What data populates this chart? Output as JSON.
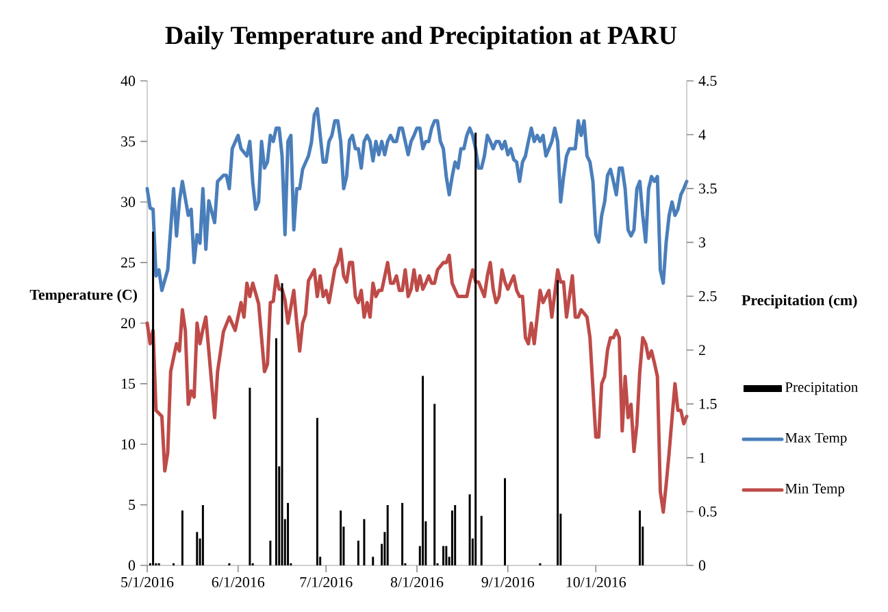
{
  "chart_data": {
    "type": "line",
    "title": "Daily Temperature and Precipitation at PARU",
    "ylabel": "Temperature (C)",
    "y2label": "Precipitation (cm)",
    "xlim": [
      "2016-05-01",
      "2016-11-01"
    ],
    "xticks": [
      {
        "value": "2016-05-01",
        "label": "5/1/2016"
      },
      {
        "value": "2016-06-01",
        "label": "6/1/2016"
      },
      {
        "value": "2016-07-01",
        "label": "7/1/2016"
      },
      {
        "value": "2016-08-01",
        "label": "8/1/2016"
      },
      {
        "value": "2016-09-01",
        "label": "9/1/2016"
      },
      {
        "value": "2016-10-01",
        "label": "10/1/2016"
      }
    ],
    "ylim": [
      0,
      40
    ],
    "yticks": [
      0,
      5,
      10,
      15,
      20,
      25,
      30,
      35,
      40
    ],
    "y2lim": [
      0,
      4.5
    ],
    "y2ticks": [
      0,
      0.5,
      1,
      1.5,
      2,
      2.5,
      3,
      3.5,
      4,
      4.5
    ],
    "legend": "right",
    "series": [
      {
        "name": "Precipitation",
        "type": "bar",
        "axis": "y2",
        "color": "#000000",
        "x": [
          "2016-05-02",
          "2016-05-03",
          "2016-05-04",
          "2016-05-05",
          "2016-05-10",
          "2016-05-13",
          "2016-05-18",
          "2016-05-19",
          "2016-05-20",
          "2016-05-29",
          "2016-06-05",
          "2016-06-06",
          "2016-06-12",
          "2016-06-14",
          "2016-06-15",
          "2016-06-16",
          "2016-06-17",
          "2016-06-18",
          "2016-06-19",
          "2016-06-28",
          "2016-06-29",
          "2016-07-06",
          "2016-07-07",
          "2016-07-12",
          "2016-07-14",
          "2016-07-17",
          "2016-07-20",
          "2016-07-21",
          "2016-07-22",
          "2016-07-27",
          "2016-07-28",
          "2016-08-02",
          "2016-08-03",
          "2016-08-04",
          "2016-08-07",
          "2016-08-08",
          "2016-08-10",
          "2016-08-11",
          "2016-08-12",
          "2016-08-13",
          "2016-08-14",
          "2016-08-19",
          "2016-08-20",
          "2016-08-21",
          "2016-08-23",
          "2016-08-31",
          "2016-09-12",
          "2016-09-18",
          "2016-09-19",
          "2016-10-16",
          "2016-10-17"
        ],
        "values": [
          0.02,
          3.1,
          0.02,
          0.02,
          0.02,
          0.51,
          0.31,
          0.25,
          0.56,
          0.02,
          1.65,
          0.02,
          0.23,
          2.11,
          0.92,
          2.62,
          0.43,
          0.58,
          0.02,
          1.37,
          0.08,
          0.51,
          0.36,
          0.23,
          0.43,
          0.08,
          0.2,
          0.31,
          0.56,
          0.58,
          0.02,
          0.18,
          1.76,
          0.41,
          1.5,
          0.02,
          0.18,
          0.18,
          0.08,
          0.51,
          0.56,
          0.66,
          0.25,
          4.02,
          0.46,
          0.81,
          0.02,
          2.65,
          0.48,
          0.51,
          0.36
        ]
      },
      {
        "name": "Max Temp",
        "color": "#4a7ebb",
        "x": [
          "2016-05-01",
          "2016-05-02",
          "2016-05-03",
          "2016-05-04",
          "2016-05-05",
          "2016-05-06",
          "2016-05-08",
          "2016-05-10",
          "2016-05-11",
          "2016-05-12",
          "2016-05-13",
          "2016-05-15",
          "2016-05-16",
          "2016-05-17",
          "2016-05-18",
          "2016-05-19",
          "2016-05-20",
          "2016-05-21",
          "2016-05-22",
          "2016-05-24",
          "2016-05-25",
          "2016-05-27",
          "2016-05-28",
          "2016-05-29",
          "2016-05-30",
          "2016-06-01",
          "2016-06-02",
          "2016-06-04",
          "2016-06-05",
          "2016-06-06",
          "2016-06-07",
          "2016-06-08",
          "2016-06-09",
          "2016-06-10",
          "2016-06-11",
          "2016-06-12",
          "2016-06-13",
          "2016-06-14",
          "2016-06-15",
          "2016-06-16",
          "2016-06-17",
          "2016-06-18",
          "2016-06-19",
          "2016-06-20",
          "2016-06-21",
          "2016-06-22",
          "2016-06-23",
          "2016-06-25",
          "2016-06-26",
          "2016-06-27",
          "2016-06-28",
          "2016-06-30",
          "2016-07-01",
          "2016-07-02",
          "2016-07-03",
          "2016-07-04",
          "2016-07-05",
          "2016-07-06",
          "2016-07-07",
          "2016-07-08",
          "2016-07-09",
          "2016-07-10",
          "2016-07-11",
          "2016-07-12",
          "2016-07-13",
          "2016-07-14",
          "2016-07-15",
          "2016-07-16",
          "2016-07-17",
          "2016-07-18",
          "2016-07-19",
          "2016-07-20",
          "2016-07-21",
          "2016-07-22",
          "2016-07-23",
          "2016-07-24",
          "2016-07-25",
          "2016-07-26",
          "2016-07-27",
          "2016-07-29",
          "2016-07-30",
          "2016-07-31",
          "2016-08-01",
          "2016-08-02",
          "2016-08-03",
          "2016-08-04",
          "2016-08-05",
          "2016-08-06",
          "2016-08-07",
          "2016-08-08",
          "2016-08-09",
          "2016-08-10",
          "2016-08-11",
          "2016-08-12",
          "2016-08-13",
          "2016-08-14",
          "2016-08-15",
          "2016-08-16",
          "2016-08-17",
          "2016-08-18",
          "2016-08-19",
          "2016-08-20",
          "2016-08-21",
          "2016-08-22",
          "2016-08-23",
          "2016-08-24",
          "2016-08-25",
          "2016-08-26",
          "2016-08-27",
          "2016-08-28",
          "2016-08-29",
          "2016-08-30",
          "2016-08-31",
          "2016-09-01",
          "2016-09-02",
          "2016-09-03",
          "2016-09-04",
          "2016-09-05",
          "2016-09-06",
          "2016-09-07",
          "2016-09-08",
          "2016-09-09",
          "2016-09-10",
          "2016-09-11",
          "2016-09-12",
          "2016-09-13",
          "2016-09-14",
          "2016-09-15",
          "2016-09-16",
          "2016-09-17",
          "2016-09-18",
          "2016-09-19",
          "2016-09-20",
          "2016-09-21",
          "2016-09-22",
          "2016-09-24",
          "2016-09-25",
          "2016-09-26",
          "2016-09-27",
          "2016-09-28",
          "2016-09-29",
          "2016-09-30",
          "2016-10-01",
          "2016-10-02",
          "2016-10-03",
          "2016-10-04",
          "2016-10-05",
          "2016-10-06",
          "2016-10-07",
          "2016-10-08",
          "2016-10-09",
          "2016-10-10",
          "2016-10-11",
          "2016-10-12",
          "2016-10-13",
          "2016-10-14",
          "2016-10-15",
          "2016-10-16",
          "2016-10-17",
          "2016-10-18",
          "2016-10-19",
          "2016-10-20",
          "2016-10-21",
          "2016-10-22",
          "2016-10-23",
          "2016-10-24",
          "2016-10-25",
          "2016-10-26",
          "2016-10-27",
          "2016-10-28",
          "2016-10-29",
          "2016-10-30",
          "2016-10-31",
          "2016-11-01"
        ],
        "values": [
          31.1,
          29.5,
          29.4,
          23.9,
          24.4,
          22.7,
          24.4,
          31.1,
          27.2,
          30.1,
          31.7,
          28.9,
          29.4,
          25.0,
          27.3,
          26.6,
          31.1,
          26.1,
          30.1,
          28.3,
          31.7,
          32.2,
          32.2,
          31.1,
          34.4,
          35.5,
          34.4,
          33.8,
          35.0,
          31.6,
          29.4,
          30.0,
          35.0,
          32.8,
          33.3,
          35.5,
          35.0,
          36.1,
          36.1,
          33.8,
          27.3,
          35.0,
          35.5,
          27.7,
          31.1,
          31.1,
          32.7,
          33.8,
          34.9,
          37.2,
          37.7,
          33.3,
          33.3,
          35.0,
          35.5,
          36.7,
          36.7,
          35.0,
          31.1,
          32.1,
          35.1,
          35.5,
          34.4,
          34.4,
          32.8,
          35.0,
          35.5,
          35.0,
          33.4,
          35.0,
          33.9,
          35.0,
          33.9,
          35.0,
          35.5,
          35.0,
          35.0,
          36.1,
          36.1,
          33.9,
          35.0,
          35.5,
          36.1,
          36.1,
          34.4,
          35.0,
          35.0,
          36.1,
          36.7,
          36.7,
          35.0,
          34.4,
          32.1,
          30.6,
          32.1,
          33.3,
          32.8,
          34.4,
          34.4,
          35.5,
          36.1,
          35.5,
          34.4,
          32.8,
          32.8,
          33.8,
          35.5,
          35.0,
          34.4,
          35.0,
          35.0,
          34.4,
          35.0,
          33.9,
          34.4,
          33.5,
          33.3,
          31.7,
          33.3,
          33.8,
          35.0,
          36.1,
          35.0,
          35.5,
          35.0,
          35.5,
          33.8,
          34.4,
          35.0,
          36.1,
          35.0,
          30.0,
          32.1,
          33.8,
          34.4,
          34.4,
          36.7,
          35.5,
          36.7,
          33.8,
          33.3,
          31.7,
          27.3,
          26.7,
          28.9,
          30.0,
          32.2,
          32.7,
          31.7,
          30.6,
          32.8,
          32.8,
          31.1,
          27.7,
          27.2,
          27.7,
          31.1,
          31.7,
          28.9,
          26.7,
          31.1,
          32.1,
          31.7,
          32.1,
          24.4,
          23.3,
          26.7,
          28.9,
          30.0,
          28.9,
          29.4,
          30.6,
          31.1,
          31.7
        ]
      },
      {
        "name": "Min Temp",
        "color": "#be4b48",
        "x": [
          "2016-05-01",
          "2016-05-02",
          "2016-05-03",
          "2016-05-04",
          "2016-05-06",
          "2016-05-07",
          "2016-05-08",
          "2016-05-09",
          "2016-05-11",
          "2016-05-12",
          "2016-05-13",
          "2016-05-14",
          "2016-05-15",
          "2016-05-16",
          "2016-05-17",
          "2016-05-18",
          "2016-05-19",
          "2016-05-20",
          "2016-05-21",
          "2016-05-24",
          "2016-05-25",
          "2016-05-27",
          "2016-05-29",
          "2016-05-31",
          "2016-06-02",
          "2016-06-03",
          "2016-06-04",
          "2016-06-05",
          "2016-06-06",
          "2016-06-08",
          "2016-06-10",
          "2016-06-11",
          "2016-06-12",
          "2016-06-13",
          "2016-06-14",
          "2016-06-15",
          "2016-06-16",
          "2016-06-17",
          "2016-06-18",
          "2016-06-20",
          "2016-06-21",
          "2016-06-22",
          "2016-06-23",
          "2016-06-24",
          "2016-06-25",
          "2016-06-27",
          "2016-06-28",
          "2016-06-29",
          "2016-06-30",
          "2016-07-01",
          "2016-07-02",
          "2016-07-04",
          "2016-07-05",
          "2016-07-06",
          "2016-07-07",
          "2016-07-08",
          "2016-07-09",
          "2016-07-10",
          "2016-07-11",
          "2016-07-12",
          "2016-07-13",
          "2016-07-14",
          "2016-07-15",
          "2016-07-16",
          "2016-07-17",
          "2016-07-18",
          "2016-07-19",
          "2016-07-20",
          "2016-07-22",
          "2016-07-23",
          "2016-07-24",
          "2016-07-25",
          "2016-07-26",
          "2016-07-27",
          "2016-07-28",
          "2016-07-29",
          "2016-07-30",
          "2016-07-31",
          "2016-08-01",
          "2016-08-02",
          "2016-08-03",
          "2016-08-04",
          "2016-08-05",
          "2016-08-06",
          "2016-08-07",
          "2016-08-08",
          "2016-08-10",
          "2016-08-11",
          "2016-08-12",
          "2016-08-13",
          "2016-08-15",
          "2016-08-18",
          "2016-08-19",
          "2016-08-20",
          "2016-08-21",
          "2016-08-22",
          "2016-08-24",
          "2016-08-25",
          "2016-08-26",
          "2016-08-27",
          "2016-08-28",
          "2016-08-29",
          "2016-08-30",
          "2016-08-31",
          "2016-09-01",
          "2016-09-03",
          "2016-09-04",
          "2016-09-05",
          "2016-09-06",
          "2016-09-07",
          "2016-09-08",
          "2016-09-09",
          "2016-09-10",
          "2016-09-12",
          "2016-09-13",
          "2016-09-15",
          "2016-09-16",
          "2016-09-18",
          "2016-09-19",
          "2016-09-20",
          "2016-09-21",
          "2016-09-23",
          "2016-09-24",
          "2016-09-25",
          "2016-09-26",
          "2016-09-28",
          "2016-09-29",
          "2016-10-01",
          "2016-10-02",
          "2016-10-03",
          "2016-10-04",
          "2016-10-05",
          "2016-10-06",
          "2016-10-07",
          "2016-10-08",
          "2016-10-09",
          "2016-10-10",
          "2016-10-11",
          "2016-10-12",
          "2016-10-13",
          "2016-10-14",
          "2016-10-15",
          "2016-10-16",
          "2016-10-17",
          "2016-10-18",
          "2016-10-19",
          "2016-10-20",
          "2016-10-21",
          "2016-10-22",
          "2016-10-23",
          "2016-10-24",
          "2016-10-25",
          "2016-10-26",
          "2016-10-27",
          "2016-10-28",
          "2016-10-29",
          "2016-10-30",
          "2016-10-31",
          "2016-11-01"
        ],
        "values": [
          20.0,
          18.3,
          19.4,
          12.8,
          12.3,
          7.8,
          9.3,
          16.0,
          18.3,
          17.7,
          21.1,
          19.4,
          13.3,
          14.4,
          13.9,
          20.0,
          18.3,
          19.5,
          20.5,
          12.2,
          16.0,
          19.3,
          20.5,
          19.4,
          21.7,
          20.5,
          23.3,
          22.2,
          23.3,
          21.6,
          16.0,
          16.6,
          21.7,
          21.8,
          23.9,
          22.8,
          22.8,
          21.9,
          20.0,
          22.7,
          20.0,
          17.7,
          20.0,
          20.7,
          23.5,
          24.4,
          22.2,
          23.9,
          22.2,
          22.7,
          21.7,
          24.5,
          25.0,
          26.1,
          23.9,
          23.4,
          25.0,
          25.0,
          22.2,
          21.7,
          22.7,
          20.5,
          21.7,
          20.5,
          23.3,
          22.2,
          22.7,
          22.7,
          25.0,
          23.3,
          23.3,
          23.9,
          22.7,
          22.7,
          24.4,
          22.2,
          22.8,
          24.4,
          22.7,
          23.9,
          22.8,
          23.3,
          23.9,
          23.3,
          23.3,
          24.4,
          25.0,
          25.0,
          25.6,
          23.3,
          22.2,
          22.2,
          23.4,
          24.4,
          23.4,
          23.4,
          22.2,
          23.9,
          25.0,
          22.8,
          21.7,
          22.2,
          24.4,
          23.4,
          22.8,
          23.9,
          22.7,
          22.2,
          22.2,
          18.8,
          18.3,
          20.0,
          18.3,
          22.7,
          21.7,
          22.7,
          20.5,
          24.4,
          23.4,
          23.4,
          20.5,
          23.9,
          20.5,
          20.5,
          21.1,
          20.5,
          18.8,
          10.6,
          10.6,
          15.0,
          15.6,
          17.8,
          18.8,
          18.8,
          19.4,
          18.8,
          11.1,
          15.6,
          12.2,
          13.3,
          9.4,
          11.6,
          16.0,
          18.8,
          18.3,
          17.1,
          17.7,
          16.7,
          15.6,
          6.1,
          4.4,
          6.7,
          9.3,
          12.2,
          15.0,
          12.8,
          12.8,
          11.7,
          12.3
        ]
      }
    ]
  }
}
